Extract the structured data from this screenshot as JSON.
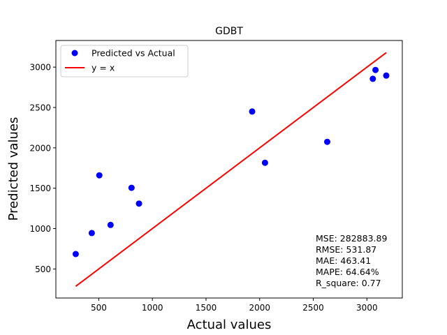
{
  "chart_data": {
    "type": "scatter",
    "title": "GDBT",
    "xlabel": "Actual values",
    "ylabel": "Predicted values",
    "xlim": [
      100,
      3330
    ],
    "ylim": [
      140,
      3330
    ],
    "xticks": [
      500,
      1000,
      1500,
      2000,
      2500,
      3000
    ],
    "yticks": [
      500,
      1000,
      1500,
      2000,
      2500,
      3000
    ],
    "grid": false,
    "legend_position": "top-left",
    "series": [
      {
        "name": "Predicted vs Actual",
        "kind": "scatter",
        "color": "#0000ff",
        "points": [
          {
            "x": 285,
            "y": 685
          },
          {
            "x": 435,
            "y": 945
          },
          {
            "x": 505,
            "y": 1660
          },
          {
            "x": 610,
            "y": 1045
          },
          {
            "x": 805,
            "y": 1505
          },
          {
            "x": 875,
            "y": 1310
          },
          {
            "x": 1930,
            "y": 2450
          },
          {
            "x": 2050,
            "y": 1815
          },
          {
            "x": 2630,
            "y": 2075
          },
          {
            "x": 3055,
            "y": 2855
          },
          {
            "x": 3080,
            "y": 2965
          },
          {
            "x": 3180,
            "y": 2895
          }
        ]
      },
      {
        "name": "y = x",
        "kind": "line",
        "color": "#ff0000",
        "points": [
          {
            "x": 285,
            "y": 285
          },
          {
            "x": 3180,
            "y": 3180
          }
        ]
      }
    ],
    "annotations": [
      "MSE: 282883.89",
      "RMSE: 531.87",
      "MAE: 463.41",
      "MAPE: 64.64%",
      "R_square: 0.77"
    ]
  }
}
